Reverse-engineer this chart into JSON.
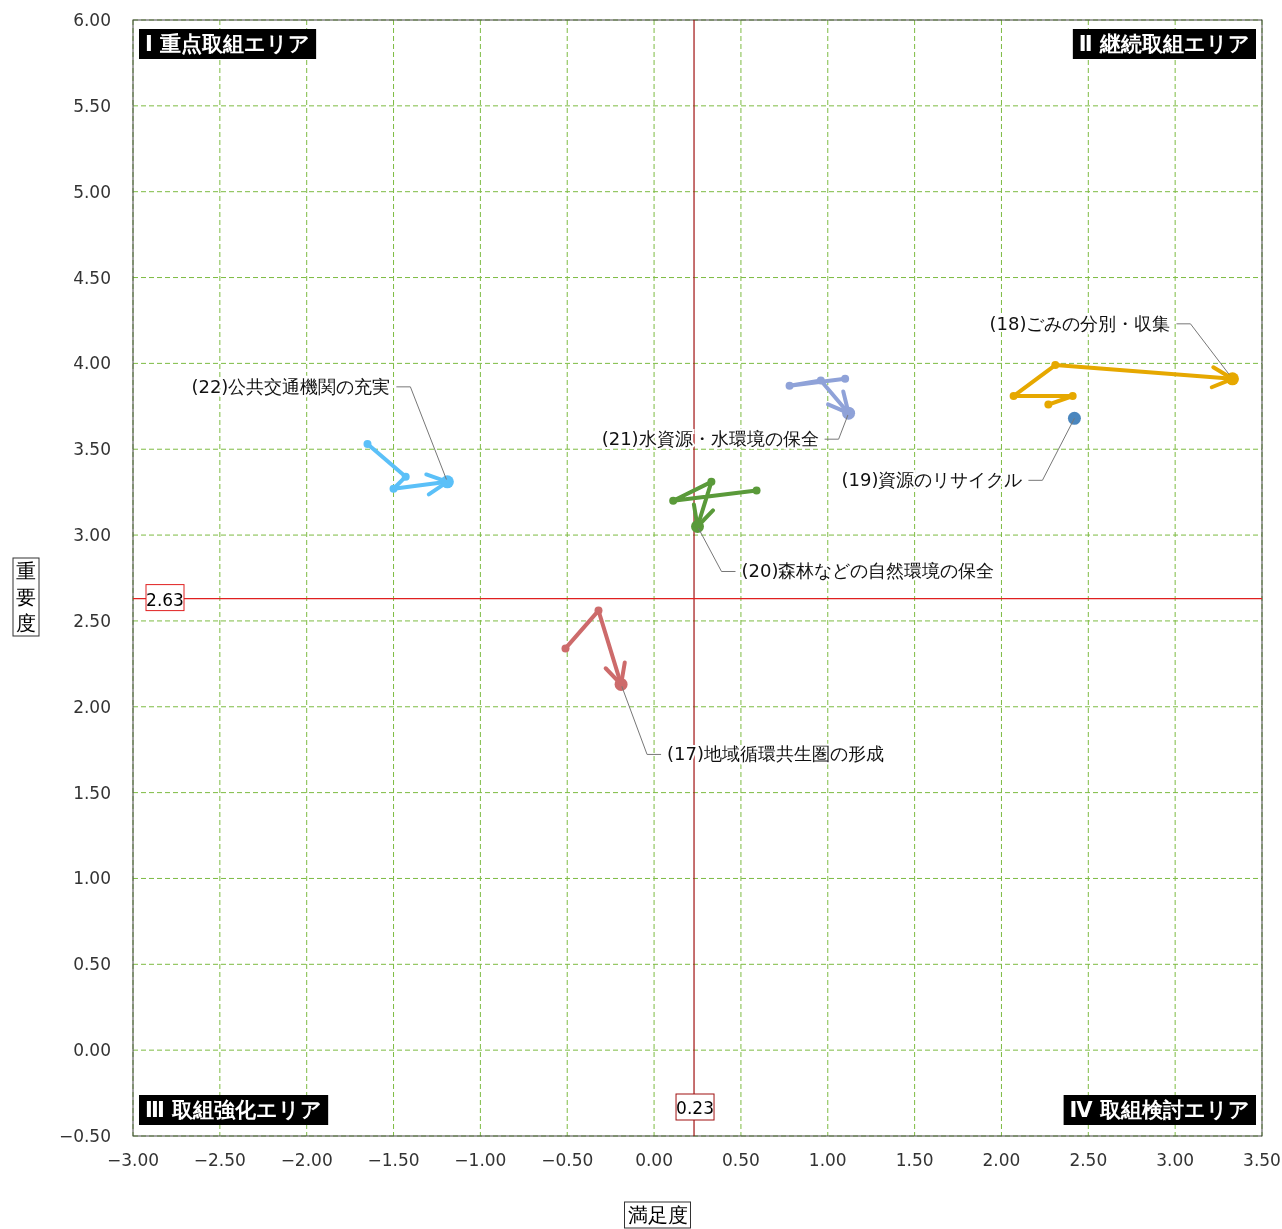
{
  "chart_data": {
    "type": "line",
    "xlabel": "満足度",
    "ylabel": "重要度",
    "xlim": [
      -3,
      3.5
    ],
    "ylim": [
      -0.5,
      6
    ],
    "xticks": [
      {
        "value": -3,
        "label": "−3.00"
      },
      {
        "value": -2.5,
        "label": "−2.50"
      },
      {
        "value": -2,
        "label": "−2.00"
      },
      {
        "value": -1.5,
        "label": "−1.50"
      },
      {
        "value": -1,
        "label": "−1.00"
      },
      {
        "value": -0.5,
        "label": "−0.50"
      },
      {
        "value": 0,
        "label": "0.00"
      },
      {
        "value": 0.5,
        "label": "0.50"
      },
      {
        "value": 1,
        "label": "1.00"
      },
      {
        "value": 1.5,
        "label": "1.50"
      },
      {
        "value": 2,
        "label": "2.00"
      },
      {
        "value": 2.5,
        "label": "2.50"
      },
      {
        "value": 3,
        "label": "3.00"
      },
      {
        "value": 3.5,
        "label": "3.50"
      }
    ],
    "yticks": [
      {
        "value": -0.5,
        "label": "−0.50"
      },
      {
        "value": 0,
        "label": "0.00"
      },
      {
        "value": 0.5,
        "label": "0.50"
      },
      {
        "value": 1,
        "label": "1.00"
      },
      {
        "value": 1.5,
        "label": "1.50"
      },
      {
        "value": 2,
        "label": "2.00"
      },
      {
        "value": 2.5,
        "label": "2.50"
      },
      {
        "value": 3,
        "label": "3.00"
      },
      {
        "value": 3.5,
        "label": "3.50"
      },
      {
        "value": 4,
        "label": "4.00"
      },
      {
        "value": 4.5,
        "label": "4.50"
      },
      {
        "value": 5,
        "label": "5.00"
      },
      {
        "value": 5.5,
        "label": "5.50"
      },
      {
        "value": 6,
        "label": "6.00"
      }
    ],
    "grid": true,
    "marker": "circle",
    "line_style": "solid",
    "series": [
      {
        "name": "(17)地域循環共生圏の形成",
        "color": "#cd6b6b",
        "x": [
          -0.51,
          -0.32,
          -0.19
        ],
        "values": [
          2.34,
          2.56,
          2.13
        ]
      },
      {
        "name": "(18)ごみの分別・収集",
        "color": "#e6a800",
        "x": [
          2.27,
          2.41,
          2.07,
          2.31,
          3.33
        ],
        "values": [
          3.76,
          3.81,
          3.81,
          3.99,
          3.91
        ]
      },
      {
        "name": "(19)資源のリサイクル",
        "color": "#4a86be",
        "type": "scatter",
        "x": [
          2.42
        ],
        "values": [
          3.68
        ]
      },
      {
        "name": "(20)森林などの自然環境の保全",
        "color": "#5a9a3a",
        "x": [
          0.59,
          0.11,
          0.33,
          0.25
        ],
        "values": [
          3.26,
          3.2,
          3.31,
          3.05
        ]
      },
      {
        "name": "(21)水資源・水環境の保全",
        "color": "#8fa2d8",
        "x": [
          1.1,
          0.78,
          0.96,
          1.12
        ],
        "values": [
          3.91,
          3.87,
          3.9,
          3.71
        ]
      },
      {
        "name": "(22)公共交通機関の充実",
        "color": "#5bc0f8",
        "x": [
          -1.65,
          -1.43,
          -1.5,
          -1.19
        ],
        "values": [
          3.53,
          3.34,
          3.27,
          3.31
        ]
      }
    ],
    "ref_lines": [
      {
        "axis": "x",
        "value": 0.23,
        "label": "0.23",
        "color": "#a01010"
      },
      {
        "axis": "y",
        "value": 2.63,
        "label": "2.63",
        "color": "#e02020"
      }
    ],
    "annotations": [
      "Ⅰ 重点取組エリア",
      "Ⅱ 継続取組エリア",
      "Ⅲ 取組強化エリア",
      "Ⅳ 取組検討エリア"
    ]
  }
}
